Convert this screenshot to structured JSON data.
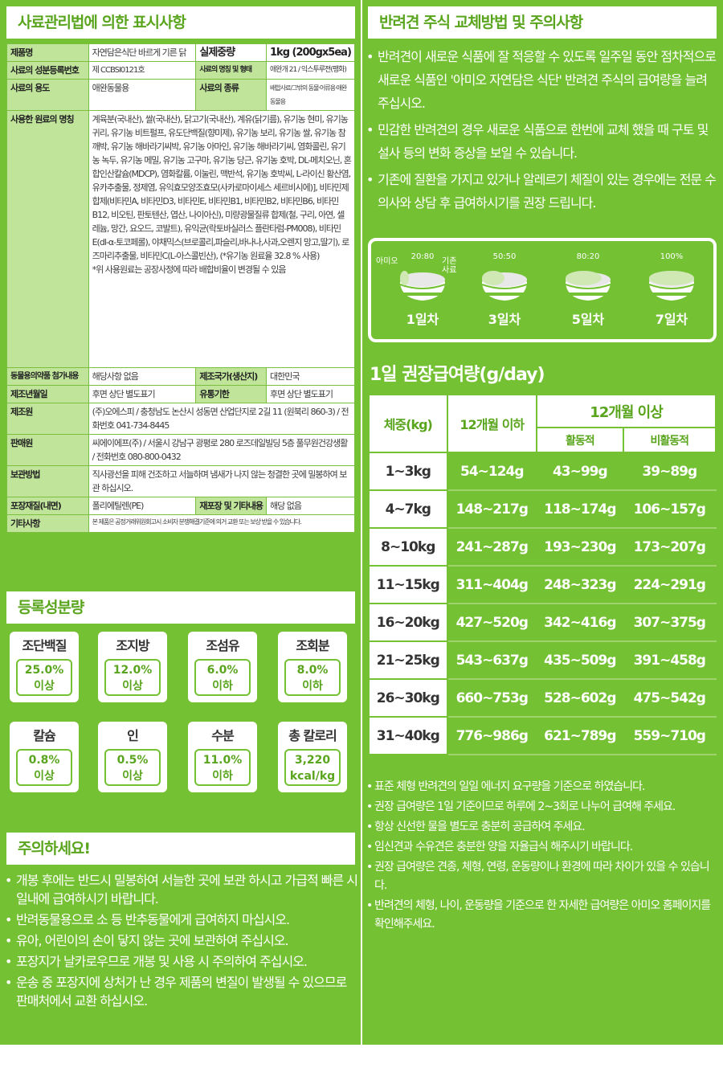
{
  "label": {
    "title": "사료관리법에 의한 표시사항",
    "rows": {
      "product_name_label": "제품명",
      "product_name_value": "자연담은식단 바르게 기른 닭",
      "net_weight_label": "실제중량",
      "net_weight_value": "1kg (200gx5ea)",
      "reg_no_label": "사료의 성분등록번호",
      "reg_no_value": "제 CCBSI0121호",
      "feed_name_label": "사료의 명칭 및 형태",
      "feed_name_value": "애완개 21 / 익스투루젼(팽화)",
      "usage_label": "사료의 용도",
      "usage_value": "애완동물용",
      "type_label": "사료의 종류",
      "type_value": "배합사료/그밖의 동물·어류용·애완동물용",
      "ingredients_label": "사용한 원료의 명칭",
      "ingredients_value": "계육분(국내산), 쌀(국내산), 닭고기(국내산), 계유(닭기름), 유기농 현미, 유기농 귀리, 유기농 비트펄프, 유도단백질(향미제), 유기농 보리, 유기농 쌀, 유기농 참깨박, 유기농 해바라기씨박, 유기농 아마인, 유기농 해바라기씨, 염화콜린, 유기농 녹두, 유기농 메밀, 유기농 고구마, 유기농 당근, 유기농 호박, DL-메치오닌, 혼합인산칼슘(MDCP), 염화칼륨, 이눌린, 맥반석, 유기농 호박씨, L-라이신 황산염, 유카추출물, 정제염, 유익효모양조효모(사카로마이세스 세르비시에)], 비타민제 합제(비타민A, 비타민D3, 비타민E, 비타민B1, 비타민B2, 비타민B6, 비타민B12, 비오틴, 판토텐산, 엽산, 나이아신), 미량광물질류 합제(철, 구리, 아연, 셀레늄, 망간, 요오드, 코발트), 유익균(락토바실러스 플란타럼-PM008), 비타민E(dl-α-토코페롤), 야채믹스(브로콜리,파슬리,바나나,사과,오렌지 망고,딸기), 로즈마리추출물, 비타민C(L-아스콜빈산), (*유기농 원료율 32.8 % 사용)",
      "ingredients_note": "*위 사용원료는 공장사정에 따라 배합비율이 변경될 수 있음",
      "drug_label": "동물용의약품 첨가내용",
      "drug_value": "해당사항 없음",
      "origin_label": "제조국가(생산지)",
      "origin_value": "대한민국",
      "mfg_date_label": "제조년월일",
      "mfg_date_value": "후면 상단 별도표기",
      "expiry_label": "유통기한",
      "expiry_value": "후면 상단 별도표기",
      "maker_label": "제조원",
      "maker_value": "(주)오에스피 / 충청남도 논산시 성동면 산업단지로 2길 11 (원북리 860-3) / 전화번호 041-734-8445",
      "seller_label": "판매원",
      "seller_value": "씨에이에프(주) / 서울시 강남구 광평로 280 로즈데일빌딩 5층 풀무원건강생활 / 전화번호 080-800-0432",
      "storage_label": "보관방법",
      "storage_value": "직사광선을 피해 건조하고 서늘하며 냄새가 나지 않는 청결한 곳에 밀봉하여 보관 하십시오.",
      "pack_label": "포장재질(내면)",
      "pack_value": "폴리에틸렌(PE)",
      "repack_label": "재포장 및 기타내용",
      "repack_value": "해당 없음",
      "etc_label": "기타사항",
      "etc_value": "본 제품은 공정거래위원회고시 소비자 분쟁해결기준에 의거 교환 또는 보상 받을 수 있습니다."
    }
  },
  "nutrients": {
    "title": "등록성분량",
    "items": [
      {
        "name": "조단백질",
        "value": "25.0%",
        "unit": "이상"
      },
      {
        "name": "조지방",
        "value": "12.0%",
        "unit": "이상"
      },
      {
        "name": "조섬유",
        "value": "6.0%",
        "unit": "이하"
      },
      {
        "name": "조회분",
        "value": "8.0%",
        "unit": "이하"
      },
      {
        "name": "칼슘",
        "value": "0.8%",
        "unit": "이상"
      },
      {
        "name": "인",
        "value": "0.5%",
        "unit": "이상"
      },
      {
        "name": "수분",
        "value": "11.0%",
        "unit": "이하"
      },
      {
        "name": "총 칼로리",
        "value": "3,220",
        "unit": "kcal/kg"
      }
    ]
  },
  "caution": {
    "title": "주의하세요!",
    "items": [
      "개봉 후에는 반드시 밀봉하여 서늘한 곳에 보관 하시고 가급적 빠른 시일내에 급여하시기 바랍니다.",
      "반려동물용으로 소 등 반추동물에게 급여하지 마십시오.",
      "유아, 어린이의 손이 닿지 않는 곳에 보관하여 주십시오.",
      "포장지가 날카로우므로 개봉 및 사용 시 주의하여 주십시오.",
      "운송 중 포장지에 상처가 난 경우 제품의 변질이 발생될 수 있으므로 판매처에서 교환 하십시오."
    ]
  },
  "transition": {
    "title": "반려견 주식 교체방법 및 주의사항",
    "items": [
      "반려견이 새로운 식품에 잘 적응할 수 있도록 일주일 동안 점차적으로 새로운 식품인 '아미오 자연담은 식단' 반려견 주식의 급여량을 늘려주십시오.",
      "민감한 반려견의 경우 새로운 식품으로 한번에 교체 했을 때 구토 및 설사 등의 변화 증상을 보일 수 있습니다.",
      "기존에 질환을 가지고 있거나 알레르기 체질이 있는 경우에는 전문 수의사와 상담 후 급여하시기를 권장 드립니다."
    ],
    "label_amio": "아미오",
    "label_old": "기존",
    "label_old2": "사료",
    "steps": [
      {
        "ratio": "20:80",
        "day": "1일차",
        "fill": 0.2
      },
      {
        "ratio": "50:50",
        "day": "3일차",
        "fill": 0.5
      },
      {
        "ratio": "80:20",
        "day": "5일차",
        "fill": 0.8
      },
      {
        "ratio": "100%",
        "day": "7일차",
        "fill": 1.0
      }
    ]
  },
  "feeding": {
    "title": "1일 권장급여량(g/day)",
    "col_weight": "체중(kg)",
    "col_under12": "12개월 이하",
    "col_over12": "12개월 이상",
    "col_active": "활동적",
    "col_inactive": "비활동적",
    "rows": [
      {
        "w": "1~3kg",
        "a": "54~124g",
        "b": "43~99g",
        "c": "39~89g"
      },
      {
        "w": "4~7kg",
        "a": "148~217g",
        "b": "118~174g",
        "c": "106~157g"
      },
      {
        "w": "8~10kg",
        "a": "241~287g",
        "b": "193~230g",
        "c": "173~207g"
      },
      {
        "w": "11~15kg",
        "a": "311~404g",
        "b": "248~323g",
        "c": "224~291g"
      },
      {
        "w": "16~20kg",
        "a": "427~520g",
        "b": "342~416g",
        "c": "307~375g"
      },
      {
        "w": "21~25kg",
        "a": "543~637g",
        "b": "435~509g",
        "c": "391~458g"
      },
      {
        "w": "26~30kg",
        "a": "660~753g",
        "b": "528~602g",
        "c": "475~542g"
      },
      {
        "w": "31~40kg",
        "a": "776~986g",
        "b": "621~789g",
        "c": "559~710g"
      }
    ],
    "notes": [
      "표준 체형 반려견의 일일 에너지 요구량을 기준으로 하였습니다.",
      "권장 급여량은 1일 기준이므로 하루에 2~3회로 나누어 급여해 주세요.",
      "항상 신선한 물을 별도로 충분히 공급하여 주세요.",
      "임신견과 수유견은 충분한 양을 자율급식 해주시기 바랍니다.",
      "권장 급여량은 견종, 체형, 연령, 운동량이나 환경에 따라 차이가 있을 수 있습니다.",
      "반려견의 체형, 나이, 운동량을 기준으로 한 자세한 급여량은 아미오 홈페이지를 확인해주세요."
    ]
  },
  "colors": {
    "green": "#74c133",
    "light_green": "#bfe49a",
    "white": "#ffffff"
  }
}
